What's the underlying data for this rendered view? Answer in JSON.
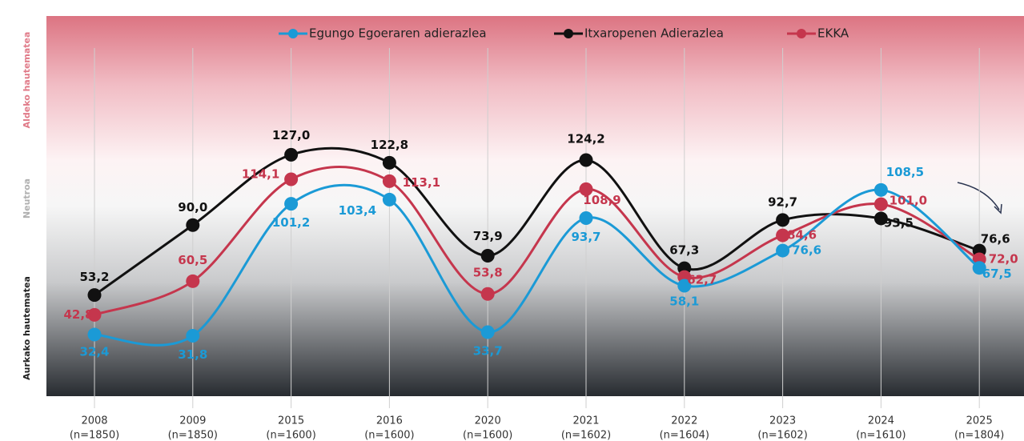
{
  "chart_data": {
    "type": "line",
    "side_labels": [
      "Aldeko hautematea",
      "Neutroa",
      "Aurkako hautematea"
    ],
    "categories": [
      "2008",
      "2009",
      "2015",
      "2016",
      "2020",
      "2021",
      "2022",
      "2023",
      "2024",
      "2025"
    ],
    "sample_sizes": [
      "(n=1850)",
      "(n=1850)",
      "(n=1600)",
      "(n=1600)",
      "(n=1600)",
      "(n=1602)",
      "(n=1604)",
      "(n=1602)",
      "(n=1610)",
      "(n=1804)"
    ],
    "ylim": [
      0,
      200
    ],
    "series": [
      {
        "name": "Egungo Egoeraren adierazlea",
        "color": "#1b9ad6",
        "values": [
          32.4,
          31.8,
          101.2,
          103.4,
          33.7,
          93.7,
          58.1,
          76.6,
          108.5,
          67.5
        ],
        "value_labels": [
          "32,4",
          "31,8",
          "101,2",
          "103,4",
          "33,7",
          "93,7",
          "58,1",
          "76,6",
          "108,5",
          "67,5"
        ]
      },
      {
        "name": "Itxaropenen Adierazlea",
        "color": "#111111",
        "values": [
          53.2,
          90.0,
          127.0,
          122.8,
          73.9,
          124.2,
          67.3,
          92.7,
          93.5,
          76.6
        ],
        "value_labels": [
          "53,2",
          "90,0",
          "127,0",
          "122,8",
          "73,9",
          "124,2",
          "67,3",
          "92,7",
          "93,5",
          "76,6"
        ]
      },
      {
        "name": "EKKA",
        "color": "#c5364d",
        "values": [
          42.8,
          60.5,
          114.1,
          113.1,
          53.8,
          108.9,
          62.7,
          84.6,
          101.0,
          72.0
        ],
        "value_labels": [
          "42,8",
          "60,5",
          "114,1",
          "113,1",
          "53,8",
          "108,9",
          "62,7",
          "84,6",
          "101,0",
          "72,0"
        ]
      }
    ]
  }
}
